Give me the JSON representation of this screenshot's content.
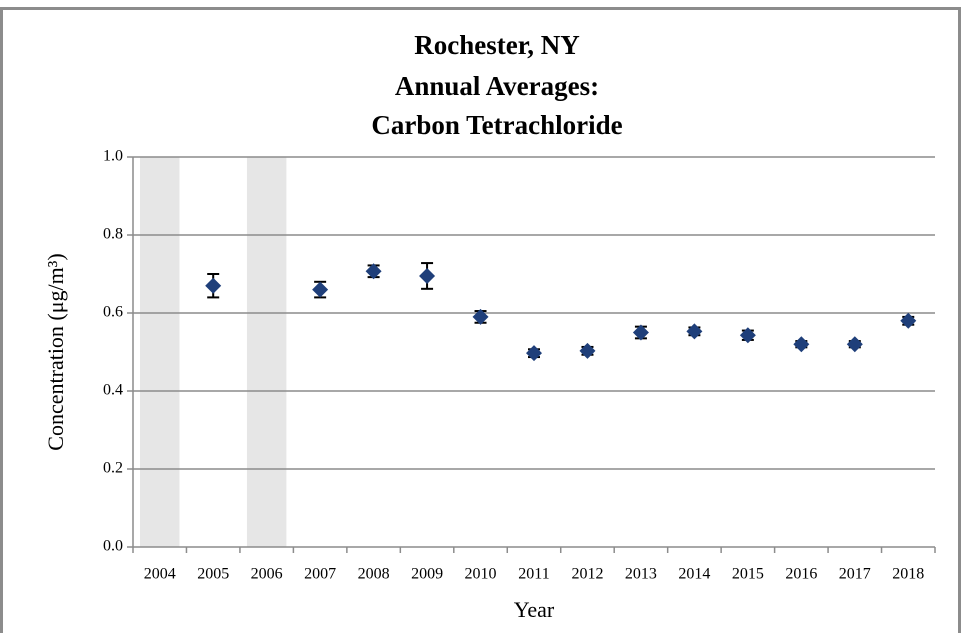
{
  "chart_data": {
    "type": "point",
    "title": [
      "Rochester, NY",
      "Annual Averages:",
      "Carbon Tetrachloride"
    ],
    "x_label": "Year",
    "y_label": "Concentration (μg/m³)",
    "categories": [
      "2004",
      "2005",
      "2006",
      "2007",
      "2008",
      "2009",
      "2010",
      "2011",
      "2012",
      "2013",
      "2014",
      "2015",
      "2016",
      "2017",
      "2018"
    ],
    "values": [
      null,
      0.67,
      null,
      0.66,
      0.707,
      0.695,
      0.59,
      0.497,
      0.503,
      0.55,
      0.553,
      0.543,
      0.52,
      0.52,
      0.58
    ],
    "errors": [
      null,
      0.03,
      null,
      0.02,
      0.015,
      0.033,
      0.015,
      0.01,
      0.01,
      0.015,
      0.01,
      0.012,
      0.008,
      0.008,
      0.01
    ],
    "color": "#1f3f7a",
    "error_color": "#000000",
    "shade_color": "#e6e6e6",
    "ylim": [
      0,
      1
    ],
    "yticks": [
      {
        "value": 0,
        "label": "0.0"
      },
      0.2,
      0.4,
      0.6,
      0.8,
      {
        "value": 1,
        "label": "1.0"
      }
    ],
    "grid": true
  }
}
